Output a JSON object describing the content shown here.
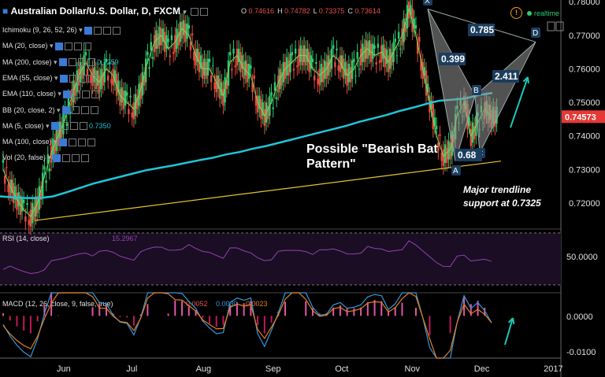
{
  "header": {
    "title": "Australian Dollar/U.S. Dollar, D, FXCM",
    "ohlc": [
      {
        "k": "O",
        "v": "0.74616"
      },
      {
        "k": "H",
        "v": "0.74782"
      },
      {
        "k": "L",
        "v": "0.73375"
      },
      {
        "k": "C",
        "v": "0.73614"
      }
    ],
    "realtime": "realtime",
    "warning_glyph": "!"
  },
  "indicators": [
    {
      "label": "Ichimoku (9, 26, 52, 26)",
      "value": ""
    },
    {
      "label": "MA (20, close)",
      "value": ""
    },
    {
      "label": "MA (200, close)",
      "value": "0.7259"
    },
    {
      "label": "EMA (55, close)",
      "value": ""
    },
    {
      "label": "EMA (110, close)",
      "value": ""
    },
    {
      "label": "BB (20, close, 2)",
      "value": ""
    },
    {
      "label": "MA (5, close)",
      "value": "0.7350"
    },
    {
      "label": "MA (100, close)",
      "value": ""
    },
    {
      "label": "Vol (20, false)",
      "value": ""
    }
  ],
  "price_axis": {
    "ticks": [
      "0.78000",
      "0.77000",
      "0.76000",
      "0.75000",
      "0.74000",
      "0.73000",
      "0.72000"
    ],
    "current": "0.74573",
    "ylim": [
      0.7125,
      0.7805
    ]
  },
  "rsi": {
    "label": "RSI (14, close)",
    "value": "15.2967",
    "axis_tick": "50.0000"
  },
  "macd": {
    "label": "MACD (12, 26, close, 9, false, true)",
    "values": [
      "0.0052",
      "0.0030",
      "0.0023"
    ],
    "axis_ticks": [
      "0.0000",
      "-0.0100"
    ]
  },
  "time_axis": [
    "Jun",
    "Jul",
    "Aug",
    "Sep",
    "Oct",
    "Nov",
    "Dec",
    "2017"
  ],
  "annotations": {
    "pattern_title": [
      "Possible \"Bearish Bat",
      "Pattern\""
    ],
    "trendline_note": [
      "Major trendline",
      "support at 0.7325"
    ],
    "points": {
      "X": "X",
      "A": "A",
      "B": "B",
      "C": "C",
      "D": "D"
    },
    "ratios": {
      "xd": "0.785",
      "xb": "0.399",
      "bd": "2.411",
      "ac": "0.68"
    }
  },
  "colors": {
    "up": "#2ecc71",
    "down": "#e74c3c",
    "ma200": "#20c5d8",
    "trend": "#e3c533",
    "rsi": "#8e44ad",
    "macd": "#3498db",
    "signal": "#e67e22",
    "accent": "#e53935",
    "teal_arrow": "#1ac8b7"
  },
  "chart_data": {
    "type": "candlestick",
    "title": "Australian Dollar/U.S. Dollar, D, FXCM",
    "xlabel": "",
    "ylabel": "",
    "x": [
      "Jun",
      "Jul",
      "Aug",
      "Sep",
      "Oct",
      "Nov",
      "Dec",
      "2017"
    ],
    "ylim": [
      0.7125,
      0.7805
    ],
    "close_path": [
      0.73,
      0.725,
      0.721,
      0.718,
      0.716,
      0.72,
      0.728,
      0.735,
      0.74,
      0.745,
      0.752,
      0.758,
      0.762,
      0.758,
      0.756,
      0.76,
      0.758,
      0.752,
      0.75,
      0.748,
      0.754,
      0.762,
      0.768,
      0.77,
      0.766,
      0.768,
      0.772,
      0.77,
      0.764,
      0.76,
      0.76,
      0.756,
      0.752,
      0.762,
      0.764,
      0.76,
      0.758,
      0.75,
      0.746,
      0.75,
      0.756,
      0.76,
      0.762,
      0.764,
      0.764,
      0.76,
      0.758,
      0.76,
      0.764,
      0.762,
      0.758,
      0.76,
      0.764,
      0.766,
      0.764,
      0.765,
      0.762,
      0.766,
      0.77,
      0.778,
      0.77,
      0.76,
      0.75,
      0.74,
      0.734,
      0.736,
      0.746,
      0.75,
      0.74,
      0.744,
      0.748,
      0.7457
    ],
    "ma200": [
      0.722,
      0.7217,
      0.7215,
      0.7215,
      0.722,
      0.7232,
      0.7245,
      0.7258,
      0.7268,
      0.7278,
      0.7288,
      0.7298,
      0.7305,
      0.7312,
      0.732,
      0.7328,
      0.7335,
      0.7345,
      0.7352,
      0.7362,
      0.737,
      0.738,
      0.739,
      0.74,
      0.741,
      0.742,
      0.743,
      0.7442,
      0.7452,
      0.7462,
      0.7474,
      0.7484,
      0.7495,
      0.7505,
      0.7508,
      0.7512,
      0.7522,
      0.7528
    ],
    "bat_pattern": {
      "X": 0.7778,
      "A": 0.7325,
      "B": 0.752,
      "C": 0.735,
      "D": 0.768
    },
    "trendline": [
      0.7148,
      0.7325
    ],
    "rsi_range": [
      0,
      100
    ],
    "macd_range": [
      -0.011,
      0.006
    ]
  }
}
